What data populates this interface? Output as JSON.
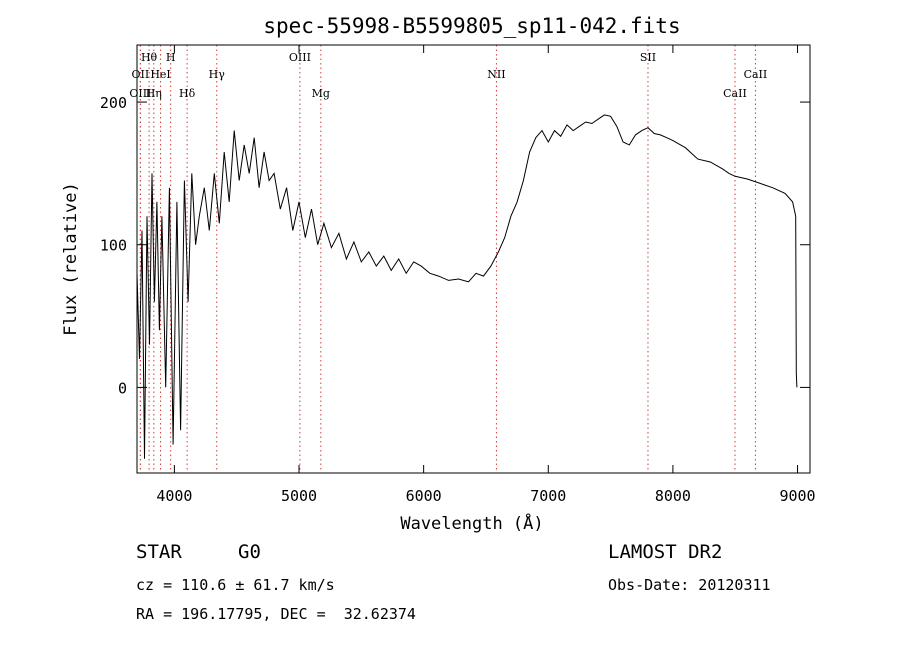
{
  "chart_data": {
    "type": "line",
    "title": "spec-55998-B5599805_sp11-042.fits",
    "xlabel": "Wavelength (Å)",
    "ylabel": "Flux (relative)",
    "xlim": [
      3700,
      9100
    ],
    "ylim": [
      -60,
      240
    ],
    "xticks": [
      4000,
      5000,
      6000,
      7000,
      8000,
      9000
    ],
    "yticks": [
      0,
      100,
      200
    ],
    "grid": false,
    "line_color": "#000000",
    "marker_color": "#d04040",
    "series": [
      {
        "x": [
          3700,
          3720,
          3740,
          3760,
          3780,
          3800,
          3820,
          3840,
          3860,
          3880,
          3900,
          3930,
          3960,
          3990,
          4020,
          4050,
          4080,
          4110,
          4140,
          4170,
          4200,
          4240,
          4280,
          4320,
          4360,
          4400,
          4440,
          4480,
          4520,
          4560,
          4600,
          4640,
          4680,
          4720,
          4760,
          4800,
          4850,
          4900,
          4950,
          5000,
          5050,
          5100,
          5150,
          5200,
          5260,
          5320,
          5380,
          5440,
          5500,
          5560,
          5620,
          5680,
          5740,
          5800,
          5860,
          5920,
          5980,
          6050,
          6120,
          6200,
          6280,
          6360,
          6420,
          6480,
          6540,
          6600,
          6650,
          6700,
          6750,
          6800,
          6850,
          6900,
          6950,
          7000,
          7050,
          7100,
          7150,
          7200,
          7250,
          7300,
          7350,
          7400,
          7450,
          7500,
          7550,
          7600,
          7650,
          7700,
          7750,
          7800,
          7850,
          7900,
          7950,
          8000,
          8100,
          8200,
          8300,
          8400,
          8450,
          8500,
          8600,
          8700,
          8800,
          8900,
          8960,
          8985,
          8990,
          8995
        ],
        "y": [
          80,
          20,
          110,
          -50,
          120,
          30,
          150,
          60,
          130,
          40,
          120,
          0,
          140,
          -40,
          130,
          -30,
          145,
          60,
          150,
          100,
          120,
          140,
          110,
          150,
          115,
          165,
          130,
          180,
          145,
          170,
          150,
          175,
          140,
          165,
          145,
          150,
          125,
          140,
          110,
          130,
          105,
          125,
          100,
          115,
          98,
          108,
          90,
          102,
          88,
          95,
          85,
          92,
          82,
          90,
          80,
          88,
          85,
          80,
          78,
          75,
          76,
          74,
          80,
          78,
          85,
          95,
          105,
          120,
          130,
          145,
          165,
          175,
          180,
          172,
          180,
          176,
          184,
          180,
          183,
          186,
          185,
          188,
          191,
          190,
          183,
          172,
          170,
          177,
          180,
          182,
          178,
          177,
          175,
          173,
          168,
          160,
          158,
          153,
          150,
          148,
          146,
          143,
          140,
          136,
          130,
          120,
          10,
          0
        ]
      }
    ],
    "line_markers": [
      {
        "label": "Hθ",
        "x": 3797,
        "row": 1
      },
      {
        "label": "H",
        "x": 3970,
        "row": 1
      },
      {
        "label": "OIII",
        "x": 5007,
        "row": 1
      },
      {
        "label": "SII",
        "x": 7800,
        "row": 1
      },
      {
        "label": "OII",
        "x": 3727,
        "row": 2
      },
      {
        "label": "HeI",
        "x": 3889,
        "row": 2
      },
      {
        "label": "Hγ",
        "x": 4340,
        "row": 2
      },
      {
        "label": "NII",
        "x": 6584,
        "row": 2
      },
      {
        "label": "CaII",
        "x": 8662,
        "row": 2
      },
      {
        "label": "OIII",
        "x": 3727,
        "row": 3
      },
      {
        "label": "Hη",
        "x": 3835,
        "row": 3
      },
      {
        "label": "Hδ",
        "x": 4102,
        "row": 3
      },
      {
        "label": "Mg",
        "x": 5175,
        "row": 3
      },
      {
        "label": "CaII",
        "x": 8498,
        "row": 3
      }
    ]
  },
  "info": {
    "object_class": "STAR",
    "subclass": "G0",
    "survey": "LAMOST DR2",
    "redshift": "cz = 110.6 ± 61.7 km/s",
    "obs_date": "Obs-Date: 20120311",
    "coords": "RA = 196.17795, DEC =  32.62374"
  }
}
